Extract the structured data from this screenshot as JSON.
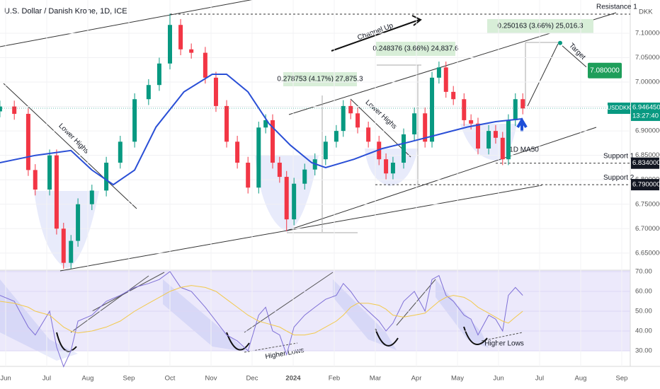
{
  "chart_data": {
    "type": "candlestick",
    "title": "U.S. Dollar / Danish Krone, 1D, ICE",
    "currency": "DKK",
    "symbol": "USDDKK",
    "last_price": 6.94645,
    "last_price_label": "6.946450",
    "countdown": "13:27:40",
    "up_color": "#089981",
    "down_color": "#f23645",
    "x": [
      -0.14,
      0.21,
      0.55,
      0.72,
      1.07,
      1.24,
      1.41,
      1.59,
      1.76,
      2.1,
      2.45,
      2.79,
      3.14,
      3.48,
      3.74,
      4.0,
      4.26,
      4.52,
      4.86,
      5.12,
      5.38,
      5.64,
      5.9,
      6.16,
      6.33,
      6.5,
      6.67,
      6.84,
      7.02,
      7.28,
      7.53,
      7.79,
      8.05,
      8.22,
      8.4,
      8.57,
      8.83,
      9.09,
      9.26,
      9.43,
      9.69,
      9.95,
      10.21,
      10.38,
      10.55,
      10.72,
      10.9,
      11.16,
      11.33,
      11.5,
      11.76,
      11.93,
      12.1,
      12.24,
      12.41,
      12.59
    ],
    "open": [
      6.94,
      6.95,
      6.935,
      6.82,
      6.78,
      6.85,
      6.7,
      6.63,
      6.675,
      6.75,
      6.778,
      6.835,
      6.878,
      6.965,
      6.994,
      7.038,
      7.117,
      7.067,
      7.06,
      7.009,
      6.951,
      6.878,
      6.835,
      6.784,
      6.907,
      6.922,
      6.835,
      6.806,
      6.719,
      6.792,
      6.821,
      6.842,
      6.878,
      6.9,
      6.951,
      6.936,
      6.907,
      6.878,
      6.842,
      6.813,
      6.835,
      6.893,
      6.936,
      6.878,
      7.009,
      7.03,
      6.98,
      6.965,
      6.922,
      6.915,
      6.864,
      6.9,
      6.886,
      6.842,
      6.922,
      6.965
    ],
    "high": [
      6.962,
      6.962,
      6.947,
      6.832,
      6.862,
      6.862,
      6.712,
      6.687,
      6.762,
      6.79,
      6.847,
      6.89,
      6.977,
      7.006,
      7.05,
      7.14,
      7.129,
      7.079,
      7.072,
      7.021,
      6.963,
      6.89,
      6.847,
      6.919,
      6.934,
      6.934,
      6.847,
      6.818,
      6.804,
      6.833,
      6.854,
      6.89,
      6.912,
      6.963,
      6.963,
      6.948,
      6.919,
      6.89,
      6.854,
      6.847,
      6.905,
      6.948,
      6.948,
      7.021,
      7.042,
      7.042,
      6.992,
      6.977,
      6.934,
      6.927,
      6.912,
      6.912,
      6.898,
      6.934,
      6.977,
      6.977
    ],
    "low": [
      6.928,
      6.923,
      6.808,
      6.768,
      6.768,
      6.688,
      6.618,
      6.618,
      6.663,
      6.738,
      6.766,
      6.823,
      6.866,
      6.953,
      6.982,
      7.026,
      7.055,
      7.048,
      6.997,
      6.939,
      6.866,
      6.823,
      6.772,
      6.772,
      6.895,
      6.823,
      6.794,
      6.695,
      6.707,
      6.78,
      6.809,
      6.83,
      6.866,
      6.888,
      6.924,
      6.895,
      6.866,
      6.83,
      6.801,
      6.801,
      6.823,
      6.881,
      6.866,
      6.866,
      6.997,
      6.968,
      6.953,
      6.91,
      6.903,
      6.852,
      6.852,
      6.874,
      6.83,
      6.83,
      6.91,
      6.934
    ],
    "close": [
      6.95,
      6.935,
      6.82,
      6.78,
      6.85,
      6.7,
      6.63,
      6.675,
      6.75,
      6.778,
      6.835,
      6.878,
      6.965,
      6.994,
      7.038,
      7.117,
      7.067,
      7.06,
      7.009,
      6.951,
      6.878,
      6.835,
      6.784,
      6.907,
      6.922,
      6.835,
      6.806,
      6.719,
      6.792,
      6.821,
      6.842,
      6.878,
      6.9,
      6.951,
      6.936,
      6.907,
      6.878,
      6.842,
      6.813,
      6.835,
      6.893,
      6.936,
      6.878,
      7.009,
      7.03,
      6.98,
      6.965,
      6.922,
      6.915,
      6.864,
      6.9,
      6.886,
      6.842,
      6.922,
      6.965,
      6.946
    ],
    "ma": {
      "name": "1D MA50",
      "color": "#2a4fd6",
      "x": [
        -0.14,
        0.72,
        1.59,
        2.1,
        2.62,
        3.14,
        3.66,
        4.34,
        5.03,
        5.38,
        5.9,
        6.41,
        6.93,
        7.45,
        7.79,
        8.48,
        9.17,
        9.86,
        10.55,
        11.24,
        11.93,
        12.59
      ],
      "values": [
        6.835,
        6.85,
        6.86,
        6.82,
        6.79,
        6.82,
        6.908,
        6.98,
        7.016,
        7.016,
        6.98,
        6.915,
        6.871,
        6.835,
        6.825,
        6.842,
        6.864,
        6.878,
        6.893,
        6.908,
        6.919,
        6.925
      ]
    },
    "xlim": [
      -0.138,
      15.207
    ],
    "xticks": [
      {
        "value": 0,
        "label": "Jun"
      },
      {
        "value": 1,
        "label": "Jul"
      },
      {
        "value": 2,
        "label": "Aug"
      },
      {
        "value": 3,
        "label": "Sep"
      },
      {
        "value": 4,
        "label": "Oct"
      },
      {
        "value": 5,
        "label": "Nov"
      },
      {
        "value": 6,
        "label": "Dec"
      },
      {
        "value": 7,
        "label": "2024"
      },
      {
        "value": 8,
        "label": "Feb"
      },
      {
        "value": 9,
        "label": "Mar"
      },
      {
        "value": 10,
        "label": "Apr"
      },
      {
        "value": 11,
        "label": "May"
      },
      {
        "value": 12,
        "label": "Jun"
      },
      {
        "value": 13,
        "label": "Jul"
      },
      {
        "value": 14,
        "label": "Aug"
      },
      {
        "value": 15,
        "label": "Sep"
      }
    ],
    "ylim": [
      6.615,
      7.168
    ],
    "yticks": [
      {
        "value": 6.65,
        "label": "6.650000"
      },
      {
        "value": 6.7,
        "label": "6.700000"
      },
      {
        "value": 6.75,
        "label": "6.750000"
      },
      {
        "value": 6.8,
        "label": "6.800000"
      },
      {
        "value": 6.85,
        "label": "6.850000"
      },
      {
        "value": 6.9,
        "label": "6.900000"
      },
      {
        "value": 6.95,
        "label": "6.950000"
      },
      {
        "value": 7.0,
        "label": "7.000000"
      },
      {
        "value": 7.05,
        "label": "7.050000"
      },
      {
        "value": 7.1,
        "label": "7.100000"
      }
    ],
    "grid": true,
    "levels": [
      {
        "name": "Resistance 1",
        "value": 7.139
      },
      {
        "name": "Support 1",
        "value": 6.834,
        "label": "6.834000"
      },
      {
        "name": "Support 2",
        "value": 6.79,
        "label": "6.790000"
      },
      {
        "name": "Target",
        "value": 7.08,
        "label": "7.080000"
      }
    ],
    "annotations": [
      "Channel Up",
      "0.250163 (3.66%) 25,016.3",
      "0.248376 (3.66%) 24,837.6",
      "0.278753 (4.17%) 27,875.3",
      "Lower Highs",
      "Lower Highs",
      "Higher Lows",
      "Higher Lows"
    ],
    "rsi": {
      "color": "#7e6fd6",
      "ma_color": "#f2c94c",
      "values": [
        58,
        55,
        42,
        38,
        50,
        32,
        22,
        30,
        45,
        48,
        55,
        58,
        62,
        64,
        66,
        70,
        62,
        60,
        52,
        45,
        38,
        35,
        30,
        48,
        52,
        40,
        38,
        28,
        42,
        48,
        52,
        56,
        58,
        64,
        60,
        55,
        50,
        45,
        40,
        44,
        55,
        60,
        50,
        66,
        68,
        58,
        55,
        48,
        46,
        38,
        48,
        46,
        40,
        58,
        62,
        58
      ],
      "ma_values": [
        55,
        54,
        52,
        50,
        48,
        45,
        42,
        40,
        39,
        40,
        42,
        45,
        50,
        54,
        57,
        60,
        62,
        63,
        62,
        60,
        56,
        52,
        48,
        45,
        44,
        43,
        42,
        40,
        38,
        38,
        39,
        42,
        45,
        48,
        52,
        54,
        54,
        53,
        51,
        48,
        47,
        48,
        49,
        52,
        55,
        57,
        58,
        57,
        55,
        52,
        49,
        47,
        45,
        44,
        47,
        50
      ],
      "ylim": [
        25,
        70.7
      ],
      "yticks": [
        {
          "value": 30,
          "label": "30.00"
        },
        {
          "value": 40,
          "label": "40.00"
        },
        {
          "value": 50,
          "label": "50.00"
        },
        {
          "value": 60,
          "label": "60.00"
        },
        {
          "value": 70,
          "label": "70.00"
        }
      ]
    }
  }
}
